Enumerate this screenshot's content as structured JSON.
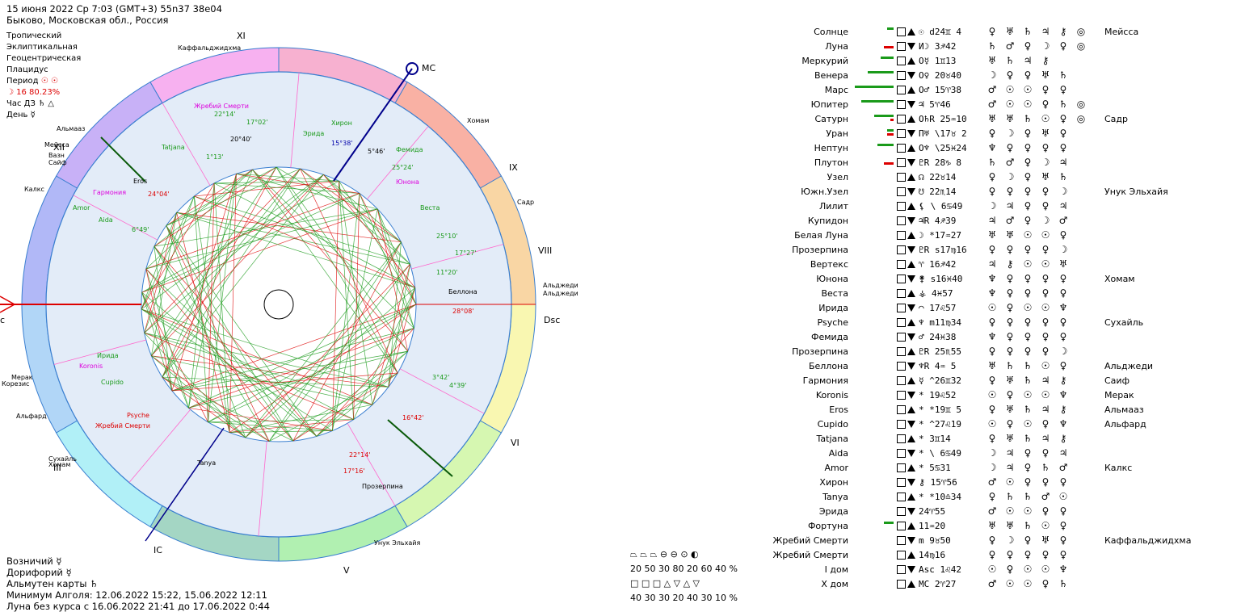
{
  "header": {
    "line1": "15 июня 2022  Ср   7:03 (GMT+3) 55n37  38e04",
    "line2": "Быково, Московская обл., Россия"
  },
  "side": {
    "rows": [
      "Тропический",
      "Эклиптикальная",
      "Геоцентрическая",
      "Плацидус"
    ],
    "period_label": "Период",
    "period_value": "☉ ☉",
    "moon_line": "☽  16 80.23%",
    "hour_label": "Час ДЗ",
    "hour_value": "♄ △",
    "day_label": "День",
    "day_value": "☿"
  },
  "bottom_info": {
    "line1": "Возничий  ☿",
    "line2": "Дорифорий  ☿",
    "line3": "Альмутен карты  ♄",
    "line4": "Минимум Алголя: 12.06.2022 15:22,  15.06.2022 12:11",
    "line5": "Луна без курса с 16.06.2022 21:41 до 17.06.2022  0:44"
  },
  "wheel": {
    "mc_label": "MC",
    "dsc_label": "Dsc",
    "ic_label": "IC",
    "asc_label": "c",
    "houses": [
      "XI",
      "IX",
      "VIII",
      "VI",
      "V",
      "III",
      "XII"
    ],
    "outer_stars": [
      "Каффальджидхма",
      "Хомам",
      "Садр",
      "Альджеди",
      "Альджеди",
      "Унук Эльхайя",
      "Сухайль",
      "Хомам",
      "Альфард",
      "Мерак",
      "Корезис",
      "Калкс",
      "Сайф",
      "Вазн",
      "Мейсса",
      "Альмааз"
    ],
    "inner_labels": [
      {
        "t": "Жребий Смерти",
        "c": "#d0d"
      },
      {
        "t": "22°14'",
        "c": "#1a9a1a"
      },
      {
        "t": "17°02'",
        "c": "#1a9a1a"
      },
      {
        "t": "Хирон",
        "c": "#1a9a1a"
      },
      {
        "t": "Эрида",
        "c": "#1a9a1a"
      },
      {
        "t": "15°38'",
        "c": "#00a"
      },
      {
        "t": "5°46'",
        "c": "#000"
      },
      {
        "t": "Фемида",
        "c": "#1a9a1a"
      },
      {
        "t": "Tatjana",
        "c": "#1a9a1a"
      },
      {
        "t": "20°40'",
        "c": "#000"
      },
      {
        "t": "1°13'",
        "c": "#1a9a1a"
      },
      {
        "t": "25°24'",
        "c": "#1a9a1a"
      },
      {
        "t": "Юнона",
        "c": "#d0d"
      },
      {
        "t": "Eros",
        "c": "#000"
      },
      {
        "t": "Гармония",
        "c": "#d0d"
      },
      {
        "t": "24°04'",
        "c": "#d00"
      },
      {
        "t": "Веста",
        "c": "#1a9a1a"
      },
      {
        "t": "Amor",
        "c": "#1a9a1a"
      },
      {
        "t": "Aida",
        "c": "#1a9a1a"
      },
      {
        "t": "6°49'",
        "c": "#1a9a1a"
      },
      {
        "t": "25°10'",
        "c": "#1a9a1a"
      },
      {
        "t": "17°27'",
        "c": "#1a9a1a"
      },
      {
        "t": "11°20'",
        "c": "#1a9a1a"
      },
      {
        "t": "Беллона",
        "c": "#000"
      },
      {
        "t": "28°08'",
        "c": "#d00"
      },
      {
        "t": "Ирида",
        "c": "#1a9a1a"
      },
      {
        "t": "Koronis",
        "c": "#d0d"
      },
      {
        "t": "Cupido",
        "c": "#1a9a1a"
      },
      {
        "t": "3°42'",
        "c": "#1a9a1a"
      },
      {
        "t": "4°39'",
        "c": "#1a9a1a"
      },
      {
        "t": "Psyche",
        "c": "#d00"
      },
      {
        "t": "Жребий Смерти",
        "c": "#d00"
      },
      {
        "t": "16°42'",
        "c": "#d00"
      },
      {
        "t": "Tanya",
        "c": "#000"
      },
      {
        "t": "22°14'",
        "c": "#d00"
      },
      {
        "t": "17°16'",
        "c": "#d00"
      },
      {
        "t": "Прозерпина",
        "c": "#000"
      }
    ]
  },
  "legend": {
    "row1_sym": "⏢ ⏢ ⏢    ⊖ ⊖ ⊙ ◐",
    "row1_val": "20  50  30     80  20  60  40 %",
    "row2_sym": "□  □  □    △  ▽  △  ▽",
    "row2_val": "40  30  30     20  40  30  10 %"
  },
  "planets": [
    {
      "name": "Солнце",
      "g": 2,
      "r": 0,
      "pos": "☉  d24♊  4",
      "ru": [
        "♀",
        "♅",
        "♄",
        "♃",
        "⚷",
        "◎"
      ],
      "star": "Мейсса"
    },
    {
      "name": "Луна",
      "g": 0,
      "r": 3,
      "pos": "И☽  3♐42",
      "ru": [
        "♄",
        "♂",
        "♀",
        "☽",
        "♀",
        "◎"
      ],
      "star": ""
    },
    {
      "name": "Меркурий",
      "g": 4,
      "r": 0,
      "pos": "О☿  1♊13",
      "ru": [
        "♅",
        "♄",
        "♃",
        "⚷",
        ""
      ],
      "star": ""
    },
    {
      "name": "Венера",
      "g": 8,
      "r": 0,
      "pos": "О♀ 20♉40",
      "ru": [
        "☽",
        "♀",
        "♀",
        "♅",
        "♄"
      ],
      "star": ""
    },
    {
      "name": "Марс",
      "g": 12,
      "r": 0,
      "pos": "О♂ 15♈38",
      "ru": [
        "♂",
        "☉",
        "☉",
        "♀",
        "♀"
      ],
      "star": ""
    },
    {
      "name": "Юпитер",
      "g": 10,
      "r": 0,
      "pos": "♃  5♈46",
      "ru": [
        "♂",
        "☉",
        "☉",
        "♀",
        "♄",
        "◎"
      ],
      "star": ""
    },
    {
      "name": "Сатурн",
      "g": 6,
      "r": 1,
      "pos": "О♄R 25♒10",
      "ru": [
        "♅",
        "♅",
        "♄",
        "☉",
        "♀",
        "◎"
      ],
      "star": "Садр"
    },
    {
      "name": "Уран",
      "g": 2,
      "r": 2,
      "pos": "П♅ \\17♉ 2",
      "ru": [
        "♀",
        "☽",
        "♀",
        "♅",
        "♀"
      ],
      "star": ""
    },
    {
      "name": "Нептун",
      "g": 5,
      "r": 0,
      "pos": "О♆ \\25♓24",
      "ru": [
        "♆",
        "♀",
        "♀",
        "♀",
        "♀"
      ],
      "star": ""
    },
    {
      "name": "Плутон",
      "g": 0,
      "r": 3,
      "pos": "♇R 28♑ 8",
      "ru": [
        "♄",
        "♂",
        "♀",
        "☽",
        "♃"
      ],
      "star": ""
    },
    {
      "name": "Узел",
      "g": 0,
      "r": 0,
      "pos": "☊ 22♉14",
      "ru": [
        "♀",
        "☽",
        "♀",
        "♅",
        "♄"
      ],
      "star": ""
    },
    {
      "name": "Южн.Узел",
      "g": 0,
      "r": 0,
      "pos": "☋ 22♏14",
      "ru": [
        "♀",
        "♀",
        "♀",
        "♀",
        "☽"
      ],
      "star": "Унук Эльхайя"
    },
    {
      "name": "Лилит",
      "g": 0,
      "r": 0,
      "pos": "⚸ \\ 6♋49",
      "ru": [
        "☽",
        "♃",
        "♀",
        "♀",
        "♃"
      ],
      "star": ""
    },
    {
      "name": "Купидон",
      "g": 0,
      "r": 0,
      "pos": "♃R  4♐39",
      "ru": [
        "♃",
        "♂",
        "♀",
        "☽",
        "♂"
      ],
      "star": ""
    },
    {
      "name": "Белая Луна",
      "g": 0,
      "r": 0,
      "pos": "☽ *17♒27",
      "ru": [
        "♅",
        "♅",
        "☉",
        "☉",
        "♀"
      ],
      "star": ""
    },
    {
      "name": "Прозерпина",
      "g": 0,
      "r": 0,
      "pos": "♇R s17♍16",
      "ru": [
        "♀",
        "♀",
        "♀",
        "♀",
        "☽"
      ],
      "star": ""
    },
    {
      "name": "Вертекс",
      "g": 0,
      "r": 0,
      "pos": "♈ 16♐42",
      "ru": [
        "♃",
        "⚷",
        "☉",
        "☉",
        "♅"
      ],
      "star": ""
    },
    {
      "name": "Юнона",
      "g": 0,
      "r": 0,
      "pos": "⚵ s16♓40",
      "ru": [
        "♆",
        "♀",
        "♀",
        "♀",
        "♀"
      ],
      "star": "Хомам"
    },
    {
      "name": "Веста",
      "g": 0,
      "r": 0,
      "pos": "⚶  4♓57",
      "ru": [
        "♆",
        "♀",
        "♀",
        "♀",
        "♀"
      ],
      "star": ""
    },
    {
      "name": "Ирида",
      "g": 0,
      "r": 0,
      "pos": "◠ 17♌57",
      "ru": [
        "☉",
        "♀",
        "☉",
        "☉",
        "♆"
      ],
      "star": ""
    },
    {
      "name": "Psyche",
      "g": 0,
      "r": 0,
      "pos": "♆ m11♍34",
      "ru": [
        "♀",
        "♀",
        "♀",
        "♀",
        "♀"
      ],
      "star": "Сухайль"
    },
    {
      "name": "Фемида",
      "g": 0,
      "r": 0,
      "pos": "♂ 24♓38",
      "ru": [
        "♆",
        "♀",
        "♀",
        "♀",
        "♀"
      ],
      "star": ""
    },
    {
      "name": "Прозерпина",
      "g": 0,
      "r": 0,
      "pos": "♇R 25♏55",
      "ru": [
        "♀",
        "♀",
        "♀",
        "♀",
        "☽"
      ],
      "star": ""
    },
    {
      "name": "Беллона",
      "g": 0,
      "r": 0,
      "pos": "♆R  4♒ 5",
      "ru": [
        "♅",
        "♄",
        "♄",
        "☉",
        "♀"
      ],
      "star": "Альджеди"
    },
    {
      "name": "Гармония",
      "g": 0,
      "r": 0,
      "pos": "☿ ^26♊32",
      "ru": [
        "♀",
        "♅",
        "♄",
        "♃",
        "⚷"
      ],
      "star": "Саиф"
    },
    {
      "name": "Koronis",
      "g": 0,
      "r": 0,
      "pos": "* 19♌52",
      "ru": [
        "☉",
        "♀",
        "☉",
        "☉",
        "♆"
      ],
      "star": "Мерак"
    },
    {
      "name": "Eros",
      "g": 0,
      "r": 0,
      "pos": "* *19♊ 5",
      "ru": [
        "♀",
        "♅",
        "♄",
        "♃",
        "⚷"
      ],
      "star": "Альмааз"
    },
    {
      "name": "Cupido",
      "g": 0,
      "r": 0,
      "pos": "* ^27♌19",
      "ru": [
        "☉",
        "♀",
        "☉",
        "♀",
        "♆"
      ],
      "star": "Альфард"
    },
    {
      "name": "Tatjana",
      "g": 0,
      "r": 0,
      "pos": "*  3♊14",
      "ru": [
        "♀",
        "♅",
        "♄",
        "♃",
        "⚷"
      ],
      "star": ""
    },
    {
      "name": "Aida",
      "g": 0,
      "r": 0,
      "pos": "* \\ 6♋49",
      "ru": [
        "☽",
        "♃",
        "♀",
        "♀",
        "♃"
      ],
      "star": ""
    },
    {
      "name": "Amor",
      "g": 0,
      "r": 0,
      "pos": "*  5♋31",
      "ru": [
        "☽",
        "♃",
        "♀",
        "♄",
        "♂"
      ],
      "star": "Калкс"
    },
    {
      "name": "Хирон",
      "g": 0,
      "r": 0,
      "pos": "⚷ 15♈56",
      "ru": [
        "♂",
        "☉",
        "♀",
        "♀",
        "♀"
      ],
      "star": ""
    },
    {
      "name": "Tanya",
      "g": 0,
      "r": 0,
      "pos": "* *10♎34",
      "ru": [
        "♀",
        "♄",
        "♄",
        "♂",
        "☉"
      ],
      "star": ""
    },
    {
      "name": "Эрида",
      "g": 0,
      "r": 0,
      "pos": "24♈55",
      "ru": [
        "♂",
        "☉",
        "☉",
        "♀",
        "♀"
      ],
      "star": ""
    },
    {
      "name": "Фортуна",
      "g": 3,
      "r": 0,
      "pos": "11♒20",
      "ru": [
        "♅",
        "♅",
        "♄",
        "☉",
        "♀"
      ],
      "star": ""
    },
    {
      "name": "Жребий Смерти",
      "g": 0,
      "r": 0,
      "pos": "m 9♉50",
      "ru": [
        "♀",
        "☽",
        "♀",
        "♅",
        "♀"
      ],
      "star": "Каффальджидхма"
    },
    {
      "name": "Жребий Смерти",
      "g": 0,
      "r": 0,
      "pos": "14♍16",
      "ru": [
        "♀",
        "♀",
        "♀",
        "♀",
        "♀"
      ],
      "star": ""
    },
    {
      "name": "I дом",
      "g": 0,
      "r": 0,
      "pos": "Asc  1♌42",
      "ru": [
        "☉",
        "♀",
        "☉",
        "☉",
        "♆"
      ],
      "star": ""
    },
    {
      "name": "X дом",
      "g": 0,
      "r": 0,
      "pos": "MC  2♈27",
      "ru": [
        "♂",
        "☉",
        "☉",
        "♀",
        "♄"
      ],
      "star": ""
    }
  ]
}
